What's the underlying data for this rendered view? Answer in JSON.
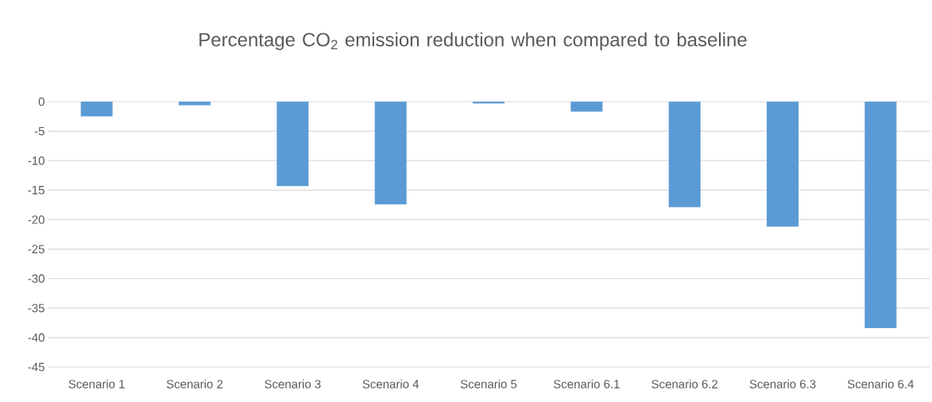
{
  "chart_data": {
    "type": "bar",
    "title": "Percentage CO$_{2}$ emission reduction when compared to baseline",
    "categories": [
      "Scenario 1",
      "Scenario 2",
      "Scenario 3",
      "Scenario 4",
      "Scenario 5",
      "Scenario 6.1",
      "Scenario 6.2",
      "Scenario 6.3",
      "Scenario 6.4"
    ],
    "values": [
      -2.5,
      -0.6,
      -14.3,
      -17.4,
      -0.3,
      -1.7,
      -17.9,
      -21.2,
      -38.4
    ],
    "color": "#5b9bd5",
    "ylim": [
      -45,
      0
    ],
    "yticks": [
      0,
      -5,
      -10,
      -15,
      -20,
      -25,
      -30,
      -35,
      -40,
      -45
    ],
    "grid": "y"
  }
}
